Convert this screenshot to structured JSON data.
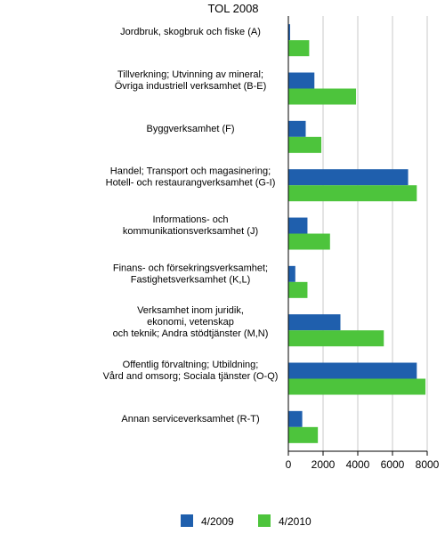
{
  "chart_data": {
    "type": "bar",
    "orientation": "horizontal",
    "title": "TOL 2008",
    "categories": [
      [
        "Jordbruk, skogbruk och fiske (A)"
      ],
      [
        "Tillverkning; Utvinning av mineral;",
        "Övriga industriell verksamhet (B-E)"
      ],
      [
        "Byggverksamhet (F)"
      ],
      [
        "Handel; Transport och magasinering;",
        "Hotell- och restaurangverksamhet (G-I)"
      ],
      [
        "Informations- och",
        "kommunikationsverksamhet (J)"
      ],
      [
        "Finans- och försekringsverksamhet;",
        "Fastighetsverksamhet (K,L)"
      ],
      [
        "Verksamhet inom juridik,",
        "ekonomi, vetenskap",
        "och teknik; Andra stödtjänster (M,N)"
      ],
      [
        "Offentlig förvaltning; Utbildning;",
        "Vård and omsorg; Sociala tjänster (O-Q)"
      ],
      [
        "Annan serviceverksamhet (R-T)"
      ]
    ],
    "series": [
      {
        "name": "4/2009",
        "color": "#1f5fad",
        "values": [
          100,
          1500,
          1000,
          6900,
          1100,
          400,
          3000,
          7400,
          800
        ]
      },
      {
        "name": "4/2010",
        "color": "#4dc43c",
        "values": [
          1200,
          3900,
          1900,
          7400,
          2400,
          1100,
          5500,
          7900,
          1700
        ]
      }
    ],
    "xlim": [
      0,
      8000
    ],
    "xticks": [
      0,
      2000,
      4000,
      6000,
      8000
    ],
    "xlabel": "",
    "ylabel": "",
    "grid": "vertical",
    "legend": "bottom"
  }
}
